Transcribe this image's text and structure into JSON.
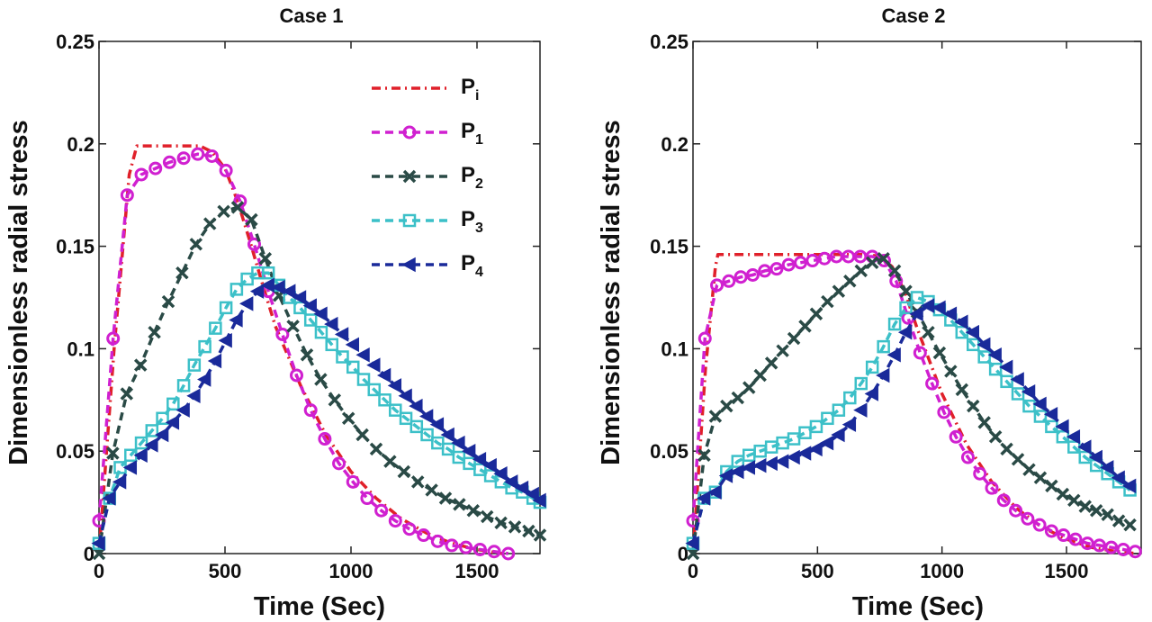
{
  "chart_data": [
    {
      "type": "line",
      "title": "Case 1",
      "xlabel": "Time (Sec)",
      "ylabel": "Dimensionless radial stress",
      "xlim": [
        0,
        1750
      ],
      "ylim": [
        0,
        0.25
      ],
      "xticks": [
        "0",
        "500",
        "1000",
        "1500"
      ],
      "yticks": [
        "0",
        "0.05",
        "0.1",
        "0.15",
        "0.2",
        "0.25"
      ],
      "grid": false,
      "legend": "top-right",
      "series": [
        {
          "name": "P",
          "sub": "i",
          "color": "#e0202a",
          "dash": "dashdot",
          "marker": "none",
          "x": [
            0,
            60,
            120,
            150,
            200,
            300,
            400,
            450,
            500,
            550,
            600,
            650,
            700,
            800,
            900,
            1000,
            1100,
            1200,
            1300,
            1400,
            1500,
            1600
          ],
          "y": [
            0,
            0.1,
            0.185,
            0.199,
            0.199,
            0.199,
            0.199,
            0.196,
            0.188,
            0.172,
            0.152,
            0.131,
            0.111,
            0.082,
            0.058,
            0.04,
            0.027,
            0.017,
            0.01,
            0.005,
            0.002,
            0
          ]
        },
        {
          "name": "P",
          "sub": "1",
          "color": "#d020d0",
          "dash": "dash",
          "marker": "circle",
          "x": [
            0,
            56,
            112,
            168,
            224,
            280,
            336,
            392,
            448,
            504,
            560,
            616,
            672,
            728,
            784,
            840,
            896,
            952,
            1008,
            1064,
            1120,
            1176,
            1232,
            1288,
            1344,
            1400,
            1456,
            1512,
            1568,
            1624
          ],
          "y": [
            0.016,
            0.105,
            0.175,
            0.185,
            0.188,
            0.191,
            0.193,
            0.195,
            0.194,
            0.187,
            0.172,
            0.151,
            0.128,
            0.107,
            0.087,
            0.07,
            0.056,
            0.044,
            0.035,
            0.027,
            0.021,
            0.016,
            0.012,
            0.009,
            0.006,
            0.004,
            0.003,
            0.002,
            0.001,
            0
          ]
        },
        {
          "name": "P",
          "sub": "2",
          "color": "#2a4a46",
          "dash": "dash",
          "marker": "x",
          "x": [
            0,
            55,
            110,
            165,
            220,
            275,
            330,
            385,
            440,
            495,
            550,
            605,
            660,
            715,
            770,
            825,
            880,
            935,
            990,
            1045,
            1100,
            1155,
            1210,
            1265,
            1320,
            1375,
            1430,
            1485,
            1540,
            1595,
            1650,
            1705,
            1750
          ],
          "y": [
            0,
            0.049,
            0.078,
            0.092,
            0.108,
            0.123,
            0.137,
            0.151,
            0.161,
            0.167,
            0.169,
            0.163,
            0.144,
            0.126,
            0.111,
            0.097,
            0.085,
            0.075,
            0.066,
            0.058,
            0.051,
            0.045,
            0.04,
            0.035,
            0.031,
            0.027,
            0.024,
            0.021,
            0.018,
            0.015,
            0.013,
            0.011,
            0.009
          ]
        },
        {
          "name": "P",
          "sub": "3",
          "color": "#3cc0c8",
          "dash": "dash",
          "marker": "square",
          "x": [
            0,
            42,
            84,
            126,
            168,
            210,
            252,
            294,
            336,
            378,
            420,
            462,
            504,
            546,
            588,
            630,
            672,
            714,
            756,
            798,
            840,
            882,
            924,
            966,
            1008,
            1050,
            1092,
            1134,
            1176,
            1218,
            1260,
            1302,
            1344,
            1386,
            1428,
            1470,
            1512,
            1554,
            1596,
            1638,
            1680,
            1722,
            1750
          ],
          "y": [
            0.005,
            0.027,
            0.042,
            0.048,
            0.054,
            0.06,
            0.066,
            0.073,
            0.082,
            0.092,
            0.101,
            0.11,
            0.12,
            0.129,
            0.134,
            0.137,
            0.137,
            0.131,
            0.125,
            0.12,
            0.114,
            0.108,
            0.102,
            0.096,
            0.091,
            0.085,
            0.08,
            0.075,
            0.07,
            0.066,
            0.062,
            0.058,
            0.054,
            0.051,
            0.047,
            0.044,
            0.041,
            0.038,
            0.035,
            0.032,
            0.03,
            0.027,
            0.025
          ]
        },
        {
          "name": "P",
          "sub": "4",
          "color": "#1a2a9a",
          "dash": "dash",
          "marker": "triangle-left",
          "x": [
            0,
            42,
            84,
            126,
            168,
            210,
            252,
            294,
            336,
            378,
            420,
            462,
            504,
            546,
            588,
            630,
            672,
            714,
            756,
            798,
            840,
            882,
            924,
            966,
            1008,
            1050,
            1092,
            1134,
            1176,
            1218,
            1260,
            1302,
            1344,
            1386,
            1428,
            1470,
            1512,
            1554,
            1596,
            1638,
            1680,
            1722,
            1750
          ],
          "y": [
            0.005,
            0.027,
            0.035,
            0.042,
            0.048,
            0.053,
            0.058,
            0.064,
            0.07,
            0.077,
            0.085,
            0.094,
            0.104,
            0.114,
            0.122,
            0.128,
            0.131,
            0.13,
            0.128,
            0.125,
            0.121,
            0.117,
            0.112,
            0.107,
            0.102,
            0.097,
            0.092,
            0.087,
            0.082,
            0.077,
            0.072,
            0.067,
            0.063,
            0.058,
            0.054,
            0.05,
            0.046,
            0.043,
            0.039,
            0.035,
            0.032,
            0.029,
            0.026
          ]
        }
      ]
    },
    {
      "type": "line",
      "title": "Case 2",
      "xlabel": "Time (Sec)",
      "ylabel": "Dimensionless radial stress",
      "xlim": [
        0,
        1800
      ],
      "ylim": [
        0,
        0.25
      ],
      "xticks": [
        "0",
        "500",
        "1000",
        "1500"
      ],
      "yticks": [
        "0",
        "0.05",
        "0.1",
        "0.15",
        "0.2",
        "0.25"
      ],
      "grid": false,
      "series": [
        {
          "name": "P",
          "sub": "i",
          "color": "#e0202a",
          "dash": "dashdot",
          "marker": "none",
          "x": [
            0,
            50,
            90,
            100,
            200,
            300,
            400,
            500,
            600,
            700,
            750,
            800,
            850,
            900,
            1000,
            1100,
            1200,
            1300,
            1400,
            1500,
            1600,
            1700,
            1780
          ],
          "y": [
            0,
            0.09,
            0.14,
            0.146,
            0.146,
            0.146,
            0.146,
            0.146,
            0.146,
            0.146,
            0.145,
            0.14,
            0.128,
            0.11,
            0.078,
            0.053,
            0.035,
            0.022,
            0.013,
            0.007,
            0.003,
            0.001,
            0
          ]
        },
        {
          "name": "P",
          "sub": "1",
          "color": "#d020d0",
          "dash": "dash",
          "marker": "circle",
          "x": [
            0,
            48,
            96,
            144,
            192,
            240,
            288,
            336,
            384,
            432,
            480,
            528,
            576,
            624,
            672,
            720,
            768,
            816,
            864,
            912,
            960,
            1008,
            1056,
            1104,
            1152,
            1200,
            1248,
            1296,
            1344,
            1392,
            1440,
            1488,
            1536,
            1584,
            1632,
            1680,
            1728,
            1776
          ],
          "y": [
            0.016,
            0.105,
            0.131,
            0.133,
            0.135,
            0.136,
            0.138,
            0.139,
            0.141,
            0.142,
            0.143,
            0.144,
            0.145,
            0.145,
            0.145,
            0.145,
            0.143,
            0.133,
            0.115,
            0.098,
            0.083,
            0.069,
            0.057,
            0.047,
            0.039,
            0.032,
            0.026,
            0.021,
            0.017,
            0.014,
            0.011,
            0.009,
            0.007,
            0.005,
            0.004,
            0.003,
            0.002,
            0.001
          ]
        },
        {
          "name": "P",
          "sub": "2",
          "color": "#2a4a46",
          "dash": "dash",
          "marker": "x",
          "x": [
            0,
            45,
            90,
            135,
            180,
            225,
            270,
            315,
            360,
            405,
            450,
            495,
            540,
            585,
            630,
            675,
            720,
            765,
            810,
            855,
            900,
            945,
            990,
            1035,
            1080,
            1125,
            1170,
            1215,
            1260,
            1305,
            1350,
            1395,
            1440,
            1485,
            1530,
            1575,
            1620,
            1665,
            1710,
            1755
          ],
          "y": [
            0,
            0.048,
            0.067,
            0.072,
            0.076,
            0.081,
            0.087,
            0.093,
            0.099,
            0.105,
            0.111,
            0.117,
            0.123,
            0.128,
            0.133,
            0.138,
            0.142,
            0.144,
            0.138,
            0.128,
            0.118,
            0.108,
            0.098,
            0.089,
            0.08,
            0.072,
            0.064,
            0.057,
            0.051,
            0.046,
            0.041,
            0.037,
            0.033,
            0.029,
            0.026,
            0.023,
            0.021,
            0.019,
            0.016,
            0.014
          ]
        },
        {
          "name": "P",
          "sub": "3",
          "color": "#3cc0c8",
          "dash": "dash",
          "marker": "square",
          "x": [
            0,
            45,
            90,
            135,
            180,
            225,
            270,
            315,
            360,
            405,
            450,
            495,
            540,
            585,
            630,
            675,
            720,
            765,
            810,
            855,
            900,
            945,
            990,
            1035,
            1080,
            1125,
            1170,
            1215,
            1260,
            1305,
            1350,
            1395,
            1440,
            1485,
            1530,
            1575,
            1620,
            1665,
            1710,
            1755
          ],
          "y": [
            0.005,
            0.027,
            0.03,
            0.04,
            0.045,
            0.048,
            0.05,
            0.052,
            0.054,
            0.056,
            0.059,
            0.062,
            0.066,
            0.07,
            0.076,
            0.083,
            0.091,
            0.101,
            0.112,
            0.12,
            0.125,
            0.123,
            0.119,
            0.114,
            0.108,
            0.102,
            0.096,
            0.09,
            0.084,
            0.078,
            0.072,
            0.067,
            0.062,
            0.057,
            0.052,
            0.047,
            0.043,
            0.039,
            0.035,
            0.031
          ]
        },
        {
          "name": "P",
          "sub": "4",
          "color": "#1a2a9a",
          "dash": "dash",
          "marker": "triangle-left",
          "x": [
            0,
            45,
            90,
            135,
            180,
            225,
            270,
            315,
            360,
            405,
            450,
            495,
            540,
            585,
            630,
            675,
            720,
            765,
            810,
            855,
            900,
            945,
            990,
            1035,
            1080,
            1125,
            1170,
            1215,
            1260,
            1305,
            1350,
            1395,
            1440,
            1485,
            1530,
            1575,
            1620,
            1665,
            1710,
            1755
          ],
          "y": [
            0.005,
            0.027,
            0.03,
            0.038,
            0.04,
            0.042,
            0.043,
            0.044,
            0.045,
            0.047,
            0.049,
            0.051,
            0.054,
            0.058,
            0.063,
            0.07,
            0.078,
            0.087,
            0.097,
            0.108,
            0.117,
            0.121,
            0.12,
            0.117,
            0.113,
            0.108,
            0.102,
            0.097,
            0.091,
            0.085,
            0.079,
            0.073,
            0.068,
            0.062,
            0.057,
            0.052,
            0.047,
            0.042,
            0.037,
            0.033
          ]
        }
      ]
    }
  ]
}
